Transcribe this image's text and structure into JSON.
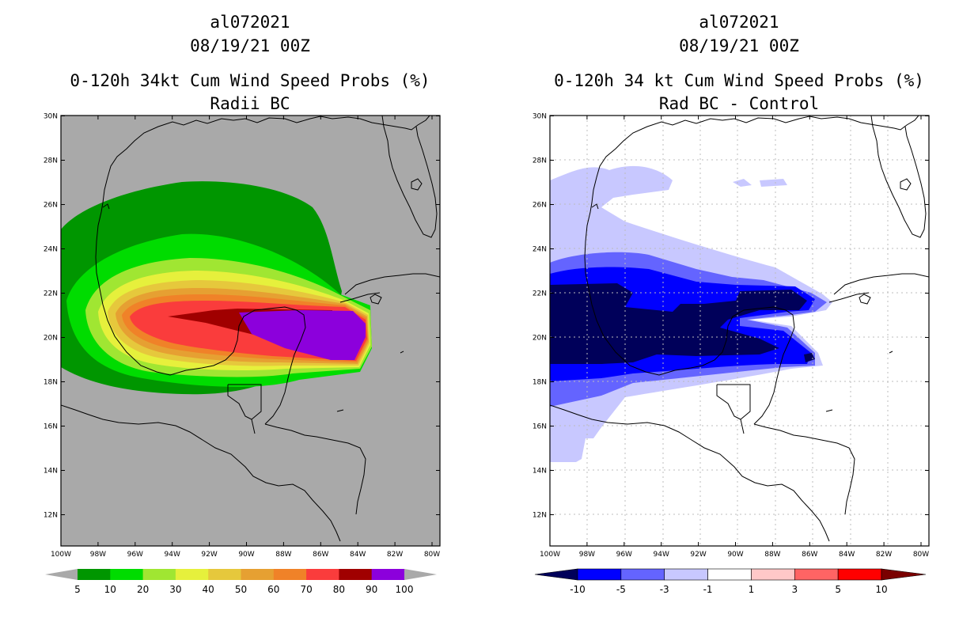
{
  "left_panel": {
    "storm_id": "al072021",
    "datetime": "08/19/21 00Z",
    "title": "0-120h 34kt Cum Wind Speed Probs (%)",
    "subtitle": "Radii BC",
    "lat_ticks": [
      "30N",
      "28N",
      "26N",
      "24N",
      "22N",
      "20N",
      "18N",
      "16N",
      "14N",
      "12N"
    ],
    "lon_ticks": [
      "100W",
      "98W",
      "96W",
      "94W",
      "92W",
      "90W",
      "88W",
      "86W",
      "84W",
      "82W",
      "80W"
    ],
    "colorbar": {
      "labels": [
        "5",
        "10",
        "20",
        "30",
        "40",
        "50",
        "60",
        "70",
        "80",
        "90",
        "100"
      ],
      "colors": [
        "#009600",
        "#00dc00",
        "#a0e632",
        "#e6f03c",
        "#e6c83c",
        "#e6a032",
        "#f08228",
        "#fa3c3c",
        "#a00000",
        "#8c00dc"
      ]
    },
    "colors": {
      "background": "#a9a9a9"
    }
  },
  "right_panel": {
    "storm_id": "al072021",
    "datetime": "08/19/21 00Z",
    "title": "0-120h 34 kt Cum Wind Speed Probs (%)",
    "subtitle": "Rad BC - Control",
    "lat_ticks": [
      "30N",
      "28N",
      "26N",
      "24N",
      "22N",
      "20N",
      "18N",
      "16N",
      "14N",
      "12N"
    ],
    "lon_ticks": [
      "100W",
      "98W",
      "96W",
      "94W",
      "92W",
      "90W",
      "88W",
      "86W",
      "84W",
      "82W",
      "80W"
    ],
    "colorbar": {
      "labels": [
        "-10",
        "-5",
        "-3",
        "-1",
        "1",
        "3",
        "5",
        "10"
      ],
      "colors": [
        "#00005a",
        "#0000ff",
        "#6464ff",
        "#c8c8ff",
        "#ffffff",
        "#ffc8c8",
        "#ff6464",
        "#ff0000",
        "#7a0000"
      ]
    },
    "colors": {
      "background": "#ffffff"
    }
  }
}
